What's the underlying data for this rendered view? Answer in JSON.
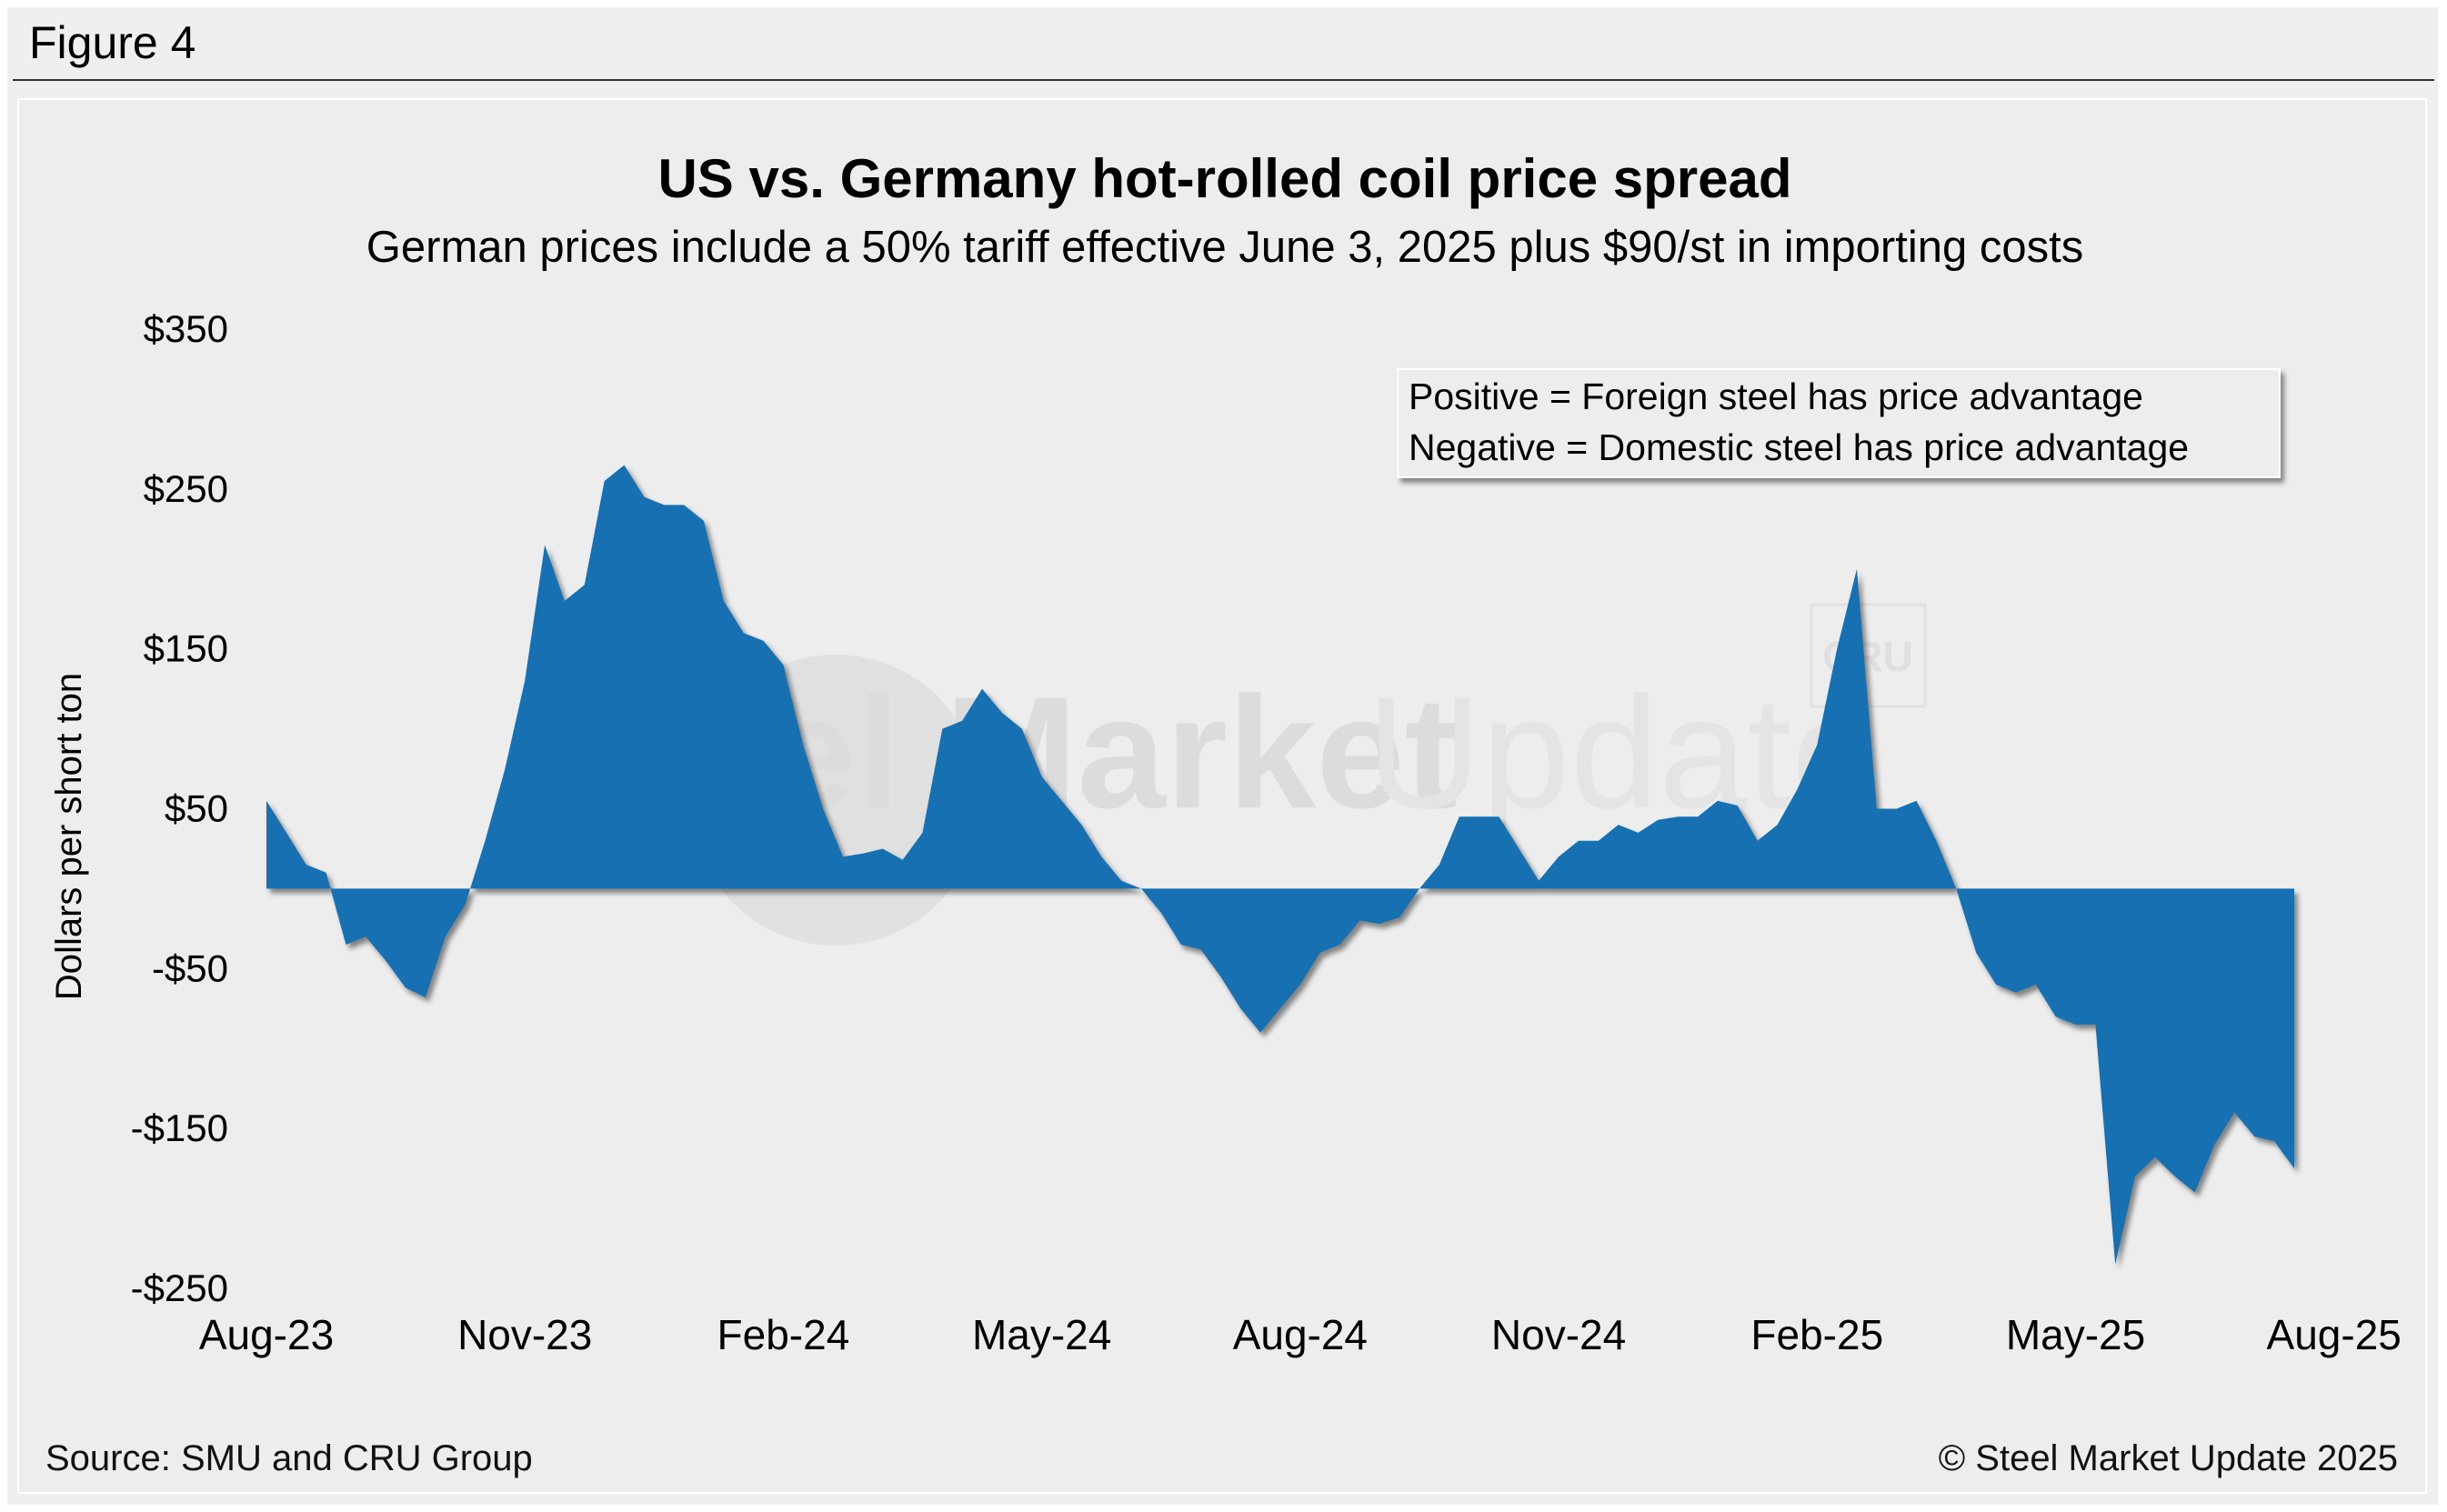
{
  "figure_label": "Figure 4",
  "source": "Source: SMU and CRU Group",
  "copyright": "© Steel Market Update 2025",
  "watermark": {
    "text_bold": "Steel Market",
    "text_light": "Update",
    "logo": "CRU"
  },
  "legend_box": {
    "line1": "Positive = Foreign steel has price advantage",
    "line2": "Negative = Domestic steel has price advantage"
  },
  "chart_data": {
    "type": "area",
    "title": "US vs. Germany hot-rolled coil price spread",
    "subtitle": "German prices include a 50% tariff effective June 3, 2025 plus $90/st in importing costs",
    "xlabel": "",
    "ylabel": "Dollars per short ton",
    "ylim": [
      -250,
      350
    ],
    "y_ticks": [
      350,
      250,
      150,
      50,
      -50,
      -150,
      -250
    ],
    "y_tick_labels": [
      "$350",
      "$250",
      "$150",
      "$50",
      "-$50",
      "-$150",
      "-$250"
    ],
    "x_tick_labels": [
      "Aug-23",
      "Nov-23",
      "Feb-24",
      "May-24",
      "Aug-24",
      "Nov-24",
      "Feb-25",
      "May-25",
      "Aug-25"
    ],
    "x_tick_positions": [
      0,
      13,
      26,
      39,
      52,
      65,
      78,
      91,
      104
    ],
    "grid": false,
    "legend": "top-right",
    "colors": {
      "area": "#1270b2",
      "text": "#000000"
    },
    "series": [
      {
        "values": [
          55,
          35,
          15,
          10,
          -35,
          -30,
          -45,
          -62,
          -68,
          -30,
          -10,
          30,
          75,
          130,
          215,
          180,
          190,
          255,
          265,
          245,
          240,
          240,
          230,
          180,
          160,
          155,
          140,
          90,
          50,
          20,
          22,
          25,
          18,
          35,
          100,
          105,
          125,
          110,
          100,
          70,
          55,
          40,
          20,
          5,
          0,
          -15,
          -35,
          -38,
          -55,
          -75,
          -90,
          -75,
          -60,
          -40,
          -35,
          -20,
          -22,
          -18,
          0,
          15,
          45,
          45,
          45,
          25,
          5,
          20,
          30,
          30,
          40,
          35,
          43,
          45,
          45,
          55,
          52,
          30,
          40,
          62,
          90,
          150,
          200,
          50,
          50,
          55,
          30,
          0,
          -40,
          -60,
          -65,
          -60,
          -80,
          -85,
          -85,
          -235,
          -180,
          -168,
          -180,
          -190,
          -160,
          -140,
          -155,
          -158,
          -175
        ]
      }
    ]
  }
}
